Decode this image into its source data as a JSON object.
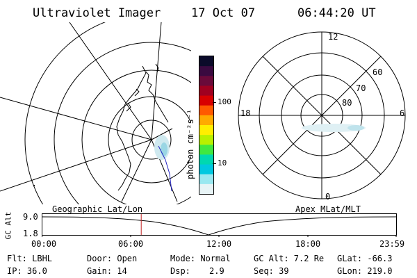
{
  "header": {
    "title": "Ultraviolet Imager",
    "date": "17 Oct 07",
    "time": "06:44:20 UT"
  },
  "colorbar": {
    "unit_label": "photon cm⁻²s⁻¹",
    "ticks": [
      "100",
      "10"
    ],
    "colors": [
      "#0b0b2a",
      "#3a0a40",
      "#6a0a3a",
      "#a00020",
      "#d80000",
      "#ff5a00",
      "#ffaa00",
      "#ffee00",
      "#b8f000",
      "#40e840",
      "#00d8b0",
      "#00c8e0",
      "#9ae8f0",
      "#e8f4f6"
    ]
  },
  "polar_plot": {
    "mlt_labels": {
      "top": "12",
      "bottom": "0",
      "left": "18",
      "right": "6"
    },
    "lat_labels": [
      "60",
      "70",
      "80"
    ]
  },
  "track_plot": {
    "y_axis_label": "GC Alt",
    "y_ticks": [
      "9.0",
      "1.8"
    ],
    "left_title": "Geographic Lat/Lon",
    "right_title": "Apex MLat/MLT",
    "x_ticks": [
      "00:00",
      "06:00",
      "12:00",
      "18:00",
      "23:59"
    ],
    "marker_time_hours": 6.739
  },
  "info": {
    "filter": "Flt: LBHL",
    "door": "Door: Open",
    "mode": "Mode: Normal",
    "gc_alt": "GC Alt: 7.2 Re",
    "glat": "GLat: -66.3",
    "ip": "IP: 36.0",
    "gain": "Gain: 14",
    "dsp_label": "Dsp:",
    "dsp_value": "2.9",
    "seq": "Seq: 39",
    "glon": "GLon: 219.0"
  }
}
